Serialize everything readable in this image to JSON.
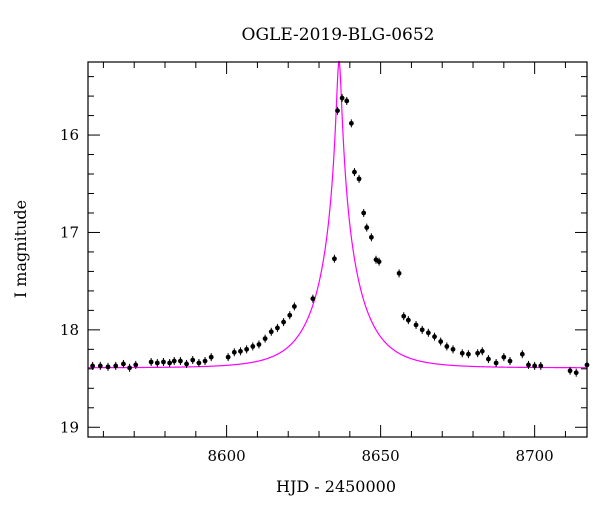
{
  "chart_data": {
    "type": "scatter",
    "title": "OGLE-2019-BLG-0652",
    "xlabel": "HJD - 2450000",
    "ylabel": "I magnitude",
    "xlim": [
      8555,
      8717
    ],
    "ylim": [
      19.1,
      15.25
    ],
    "y_inverted": true,
    "grid": false,
    "x_ticks": [
      8600,
      8650,
      8700
    ],
    "y_ticks": [
      16,
      17,
      18,
      19
    ],
    "series": [
      {
        "kind": "points",
        "color": "#000000",
        "x": [
          8556.5,
          8559,
          8561.5,
          8564,
          8566.5,
          8568.5,
          8570.5,
          8575.5,
          8577.5,
          8579.5,
          8581.5,
          8583,
          8585,
          8587,
          8589,
          8591,
          8593,
          8595,
          8600.5,
          8602.5,
          8604.5,
          8606.5,
          8608.5,
          8610.5,
          8612.5,
          8614.5,
          8616.5,
          8618.5,
          8620.5,
          8622,
          8628,
          8635,
          8636,
          8637.5,
          8639,
          8640.5,
          8641.5,
          8643,
          8644.5,
          8645.5,
          8647,
          8648.5,
          8649.5,
          8656,
          8657.5,
          8659,
          8661.5,
          8663.5,
          8665.5,
          8667.5,
          8669.5,
          8671.5,
          8673.5,
          8676.5,
          8678.5,
          8681.5,
          8683,
          8685,
          8687.5,
          8690,
          8692,
          8696,
          8698,
          8700,
          8702,
          8711.5,
          8713.5,
          8717
        ],
        "y": [
          18.37,
          18.37,
          18.38,
          18.37,
          18.35,
          18.39,
          18.36,
          18.33,
          18.34,
          18.33,
          18.34,
          18.32,
          18.32,
          18.35,
          18.31,
          18.34,
          18.32,
          18.28,
          18.28,
          18.23,
          18.22,
          18.2,
          18.17,
          18.15,
          18.09,
          18.02,
          17.98,
          17.92,
          17.85,
          17.76,
          17.68,
          17.27,
          15.75,
          15.62,
          15.65,
          15.88,
          16.38,
          16.45,
          16.8,
          16.95,
          17.05,
          17.28,
          17.3,
          17.42,
          17.86,
          17.9,
          17.95,
          18.0,
          18.03,
          18.07,
          18.12,
          18.17,
          18.2,
          18.24,
          18.25,
          18.24,
          18.22,
          18.3,
          18.34,
          18.28,
          18.32,
          18.25,
          18.36,
          18.37,
          18.37,
          18.42,
          18.44,
          18.36
        ]
      },
      {
        "kind": "model",
        "color": "#ff00ff",
        "baseline": 18.39,
        "t0": 8636.5,
        "u0": 0.055,
        "tE": 13.5
      }
    ]
  }
}
